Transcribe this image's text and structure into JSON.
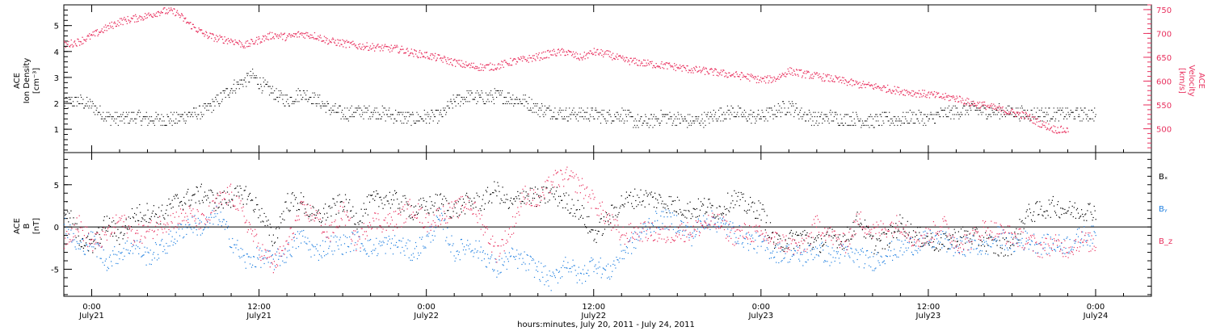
{
  "colors": {
    "black": "#000000",
    "red": "#e8305e",
    "blue": "#1f7fe0"
  },
  "xaxis": {
    "title": "hours:minutes, July 20, 2011 - July 24, 2011",
    "range_hours": [
      -2,
      76
    ],
    "ticks": [
      {
        "hour": 0,
        "time": "0:00",
        "date": "July21"
      },
      {
        "hour": 12,
        "time": "12:00",
        "date": "July21"
      },
      {
        "hour": 24,
        "time": "0:00",
        "date": "July22"
      },
      {
        "hour": 36,
        "time": "12:00",
        "date": "July22"
      },
      {
        "hour": 48,
        "time": "0:00",
        "date": "July23"
      },
      {
        "hour": 60,
        "time": "12:00",
        "date": "July23"
      },
      {
        "hour": 72,
        "time": "0:00",
        "date": "July24"
      }
    ]
  },
  "chart_data": [
    {
      "type": "scatter",
      "panel": "top",
      "left_ylabel": [
        "ACE",
        "Ion Density",
        "[cm⁻³]"
      ],
      "right_ylabel": [
        "ACE",
        "Velocity",
        "[km/s]"
      ],
      "ylim_left": [
        0.1,
        5.8
      ],
      "ylim_right": [
        450,
        760
      ],
      "left_ticks": [
        "1",
        "2",
        "3",
        "4",
        "5"
      ],
      "right_ticks": [
        "500",
        "550",
        "600",
        "650",
        "700",
        "750"
      ],
      "series": [
        {
          "name": "Ion Density",
          "axis": "left",
          "color": "black",
          "x_hours": [
            -2,
            -1,
            0,
            1,
            2,
            3,
            4,
            5,
            6,
            7,
            8,
            9,
            10,
            11,
            11.5,
            12,
            13,
            14,
            15,
            16,
            17,
            18,
            19,
            20,
            21,
            22,
            23,
            24,
            25,
            26,
            27,
            28,
            29,
            30,
            31,
            32,
            33,
            34,
            35,
            36,
            37,
            38,
            39,
            40,
            41,
            42,
            43,
            44,
            45,
            46,
            47,
            48,
            49,
            50,
            51,
            52,
            53,
            54,
            55,
            56,
            57,
            58,
            59,
            60,
            61,
            62,
            63,
            64,
            65,
            66,
            67,
            68,
            69,
            70,
            71,
            72
          ],
          "values": [
            2.0,
            2.1,
            1.9,
            1.5,
            1.4,
            1.5,
            1.4,
            1.4,
            1.4,
            1.6,
            1.7,
            2.1,
            2.6,
            2.9,
            3.1,
            2.8,
            2.4,
            2.1,
            2.4,
            2.2,
            1.8,
            1.6,
            1.7,
            1.7,
            1.6,
            1.5,
            1.4,
            1.5,
            1.5,
            2.1,
            2.3,
            2.2,
            2.3,
            2.2,
            2.1,
            1.8,
            1.7,
            1.6,
            1.6,
            1.6,
            1.5,
            1.6,
            1.3,
            1.3,
            1.5,
            1.4,
            1.3,
            1.4,
            1.6,
            1.7,
            1.5,
            1.5,
            1.7,
            1.9,
            1.6,
            1.4,
            1.5,
            1.4,
            1.4,
            1.3,
            1.4,
            1.4,
            1.5,
            1.4,
            1.6,
            1.7,
            1.8,
            1.7,
            1.7,
            1.7,
            1.6,
            1.6,
            1.6,
            1.6,
            1.6,
            1.6
          ]
        },
        {
          "name": "Velocity",
          "axis": "right",
          "color": "red",
          "x_hours": [
            -2,
            -1,
            0,
            1,
            2,
            3,
            4,
            5,
            6,
            7,
            8,
            9,
            10,
            11,
            12,
            13,
            14,
            15,
            16,
            17,
            18,
            19,
            20,
            21,
            22,
            23,
            24,
            25,
            26,
            27,
            28,
            29,
            30,
            31,
            32,
            33,
            34,
            35,
            36,
            37,
            38,
            39,
            40,
            41,
            42,
            43,
            44,
            45,
            46,
            47,
            48,
            49,
            50,
            51,
            52,
            53,
            54,
            55,
            56,
            57,
            58,
            59,
            60,
            61,
            62,
            63,
            64,
            65,
            66,
            67,
            68,
            69,
            70
          ],
          "values": [
            677,
            683,
            696,
            712,
            726,
            732,
            738,
            748,
            746,
            720,
            700,
            690,
            686,
            676,
            688,
            698,
            693,
            700,
            696,
            685,
            680,
            675,
            673,
            670,
            668,
            660,
            655,
            648,
            640,
            633,
            630,
            632,
            641,
            646,
            652,
            660,
            662,
            650,
            662,
            657,
            646,
            641,
            637,
            634,
            630,
            625,
            622,
            618,
            614,
            610,
            603,
            606,
            622,
            616,
            611,
            606,
            600,
            594,
            590,
            585,
            580,
            576,
            573,
            568,
            565,
            555,
            550,
            542,
            535,
            528,
            512,
            500,
            497
          ]
        }
      ]
    },
    {
      "type": "scatter",
      "panel": "bottom",
      "left_ylabel": [
        "ACE",
        "B",
        "[nT]"
      ],
      "ylim": [
        -8.2,
        8.8
      ],
      "left_ticks": [
        "-5",
        "0",
        "5"
      ],
      "series": [
        {
          "name": "Bₓ",
          "color": "black",
          "x_hours": [
            -2,
            -1,
            0,
            1,
            2,
            3,
            4,
            5,
            6,
            7,
            8,
            9,
            10,
            11,
            12,
            13,
            14,
            15,
            16,
            17,
            18,
            19,
            20,
            21,
            22,
            23,
            24,
            25,
            26,
            27,
            28,
            29,
            30,
            31,
            32,
            33,
            34,
            35,
            36,
            37,
            38,
            39,
            40,
            41,
            42,
            43,
            44,
            45,
            46,
            47,
            48,
            49,
            50,
            51,
            52,
            53,
            54,
            55,
            56,
            57,
            58,
            59,
            60,
            61,
            62,
            63,
            64,
            65,
            66,
            67,
            68,
            69,
            70,
            71,
            72
          ],
          "values": [
            2.5,
            -1.0,
            -2.5,
            0.5,
            -1.0,
            1.5,
            1.8,
            1.5,
            3.0,
            3.5,
            4.0,
            3.0,
            3.5,
            4.0,
            2.0,
            -1.5,
            3.0,
            3.0,
            1.0,
            2.0,
            3.0,
            1.0,
            3.0,
            3.5,
            3.0,
            2.0,
            2.5,
            3.0,
            2.0,
            3.0,
            3.0,
            4.5,
            2.5,
            4.0,
            3.5,
            4.0,
            3.0,
            2.0,
            -1.0,
            1.0,
            3.0,
            3.5,
            3.5,
            3.0,
            2.5,
            2.0,
            2.5,
            2.0,
            3.5,
            2.5,
            2.0,
            -2.0,
            -1.5,
            -1.0,
            -2.0,
            -1.0,
            -1.5,
            1.0,
            -2.0,
            -1.5,
            0.5,
            -1.0,
            -1.5,
            -2.0,
            -1.0,
            -1.0,
            -1.5,
            -2.5,
            -2.0,
            1.5,
            2.0,
            2.5,
            2.0,
            2.0,
            2.0
          ]
        },
        {
          "name": "Bᵧ",
          "color": "blue",
          "x_hours": [
            -2,
            -1,
            0,
            1,
            2,
            3,
            4,
            5,
            6,
            7,
            8,
            9,
            10,
            11,
            12,
            13,
            14,
            15,
            16,
            17,
            18,
            19,
            20,
            21,
            22,
            23,
            24,
            25,
            26,
            27,
            28,
            29,
            30,
            31,
            32,
            33,
            34,
            35,
            36,
            37,
            38,
            39,
            40,
            41,
            42,
            43,
            44,
            45,
            46,
            47,
            48,
            49,
            50,
            51,
            52,
            53,
            54,
            55,
            56,
            57,
            58,
            59,
            60,
            61,
            62,
            63,
            64,
            65,
            66,
            67,
            68,
            69,
            70,
            71,
            72
          ],
          "values": [
            0.5,
            -2.5,
            -1.5,
            -4.0,
            -3.0,
            -2.0,
            -3.5,
            -2.5,
            -1.0,
            0.5,
            0.0,
            1.5,
            -1.5,
            -4.0,
            -3.5,
            -4.0,
            -3.0,
            -1.0,
            -3.0,
            -2.0,
            -2.0,
            -1.5,
            -2.5,
            -2.0,
            -2.0,
            -3.0,
            -1.5,
            1.0,
            -3.0,
            -2.0,
            -3.0,
            -5.0,
            -3.5,
            -4.0,
            -5.0,
            -6.5,
            -4.0,
            -6.0,
            -4.0,
            -5.5,
            -3.0,
            -1.5,
            0.5,
            1.0,
            0.5,
            -1.0,
            1.0,
            0.5,
            -0.5,
            -1.5,
            -2.0,
            -3.0,
            -3.0,
            -3.5,
            -2.5,
            -3.5,
            -3.0,
            -3.5,
            -4.0,
            -3.0,
            -2.5,
            -2.0,
            -1.5,
            -1.5,
            -2.5,
            -2.0,
            -2.5,
            -1.0,
            -2.0,
            -1.5,
            -2.0,
            -2.0,
            -2.0,
            -1.0,
            -1.0
          ]
        },
        {
          "name": "B_z",
          "color": "red",
          "x_hours": [
            -2,
            -1,
            0,
            1,
            2,
            3,
            4,
            5,
            6,
            7,
            8,
            9,
            10,
            11,
            12,
            13,
            14,
            15,
            16,
            17,
            18,
            19,
            20,
            21,
            22,
            23,
            24,
            25,
            26,
            27,
            28,
            29,
            30,
            31,
            32,
            33,
            34,
            35,
            36,
            37,
            38,
            39,
            40,
            41,
            42,
            43,
            44,
            45,
            46,
            47,
            48,
            49,
            50,
            51,
            52,
            53,
            54,
            55,
            56,
            57,
            58,
            59,
            60,
            61,
            62,
            63,
            64,
            65,
            66,
            67,
            68,
            69,
            70,
            71,
            72
          ],
          "values": [
            -1.5,
            0.5,
            -2.0,
            -1.0,
            1.0,
            -1.0,
            -0.5,
            0.5,
            1.0,
            1.5,
            0.5,
            3.0,
            4.0,
            1.0,
            -2.5,
            -4.5,
            -2.0,
            2.0,
            1.5,
            -1.0,
            2.0,
            -2.0,
            1.0,
            0.5,
            1.0,
            2.5,
            0.5,
            1.5,
            2.0,
            3.0,
            0.5,
            -3.0,
            -0.5,
            4.0,
            3.0,
            5.5,
            6.0,
            5.0,
            3.0,
            1.0,
            -1.0,
            -0.5,
            -0.5,
            -1.0,
            -0.5,
            -0.5,
            0.5,
            0.5,
            -1.0,
            -0.5,
            -1.0,
            -1.5,
            -2.0,
            -2.5,
            0.5,
            -1.0,
            -2.0,
            1.0,
            -0.5,
            0.0,
            0.5,
            -1.5,
            -1.0,
            0.5,
            -2.0,
            -1.5,
            0.0,
            -0.5,
            -1.0,
            -1.5,
            -2.5,
            -2.0,
            -2.5,
            -1.5,
            -2.0
          ]
        }
      ]
    }
  ]
}
